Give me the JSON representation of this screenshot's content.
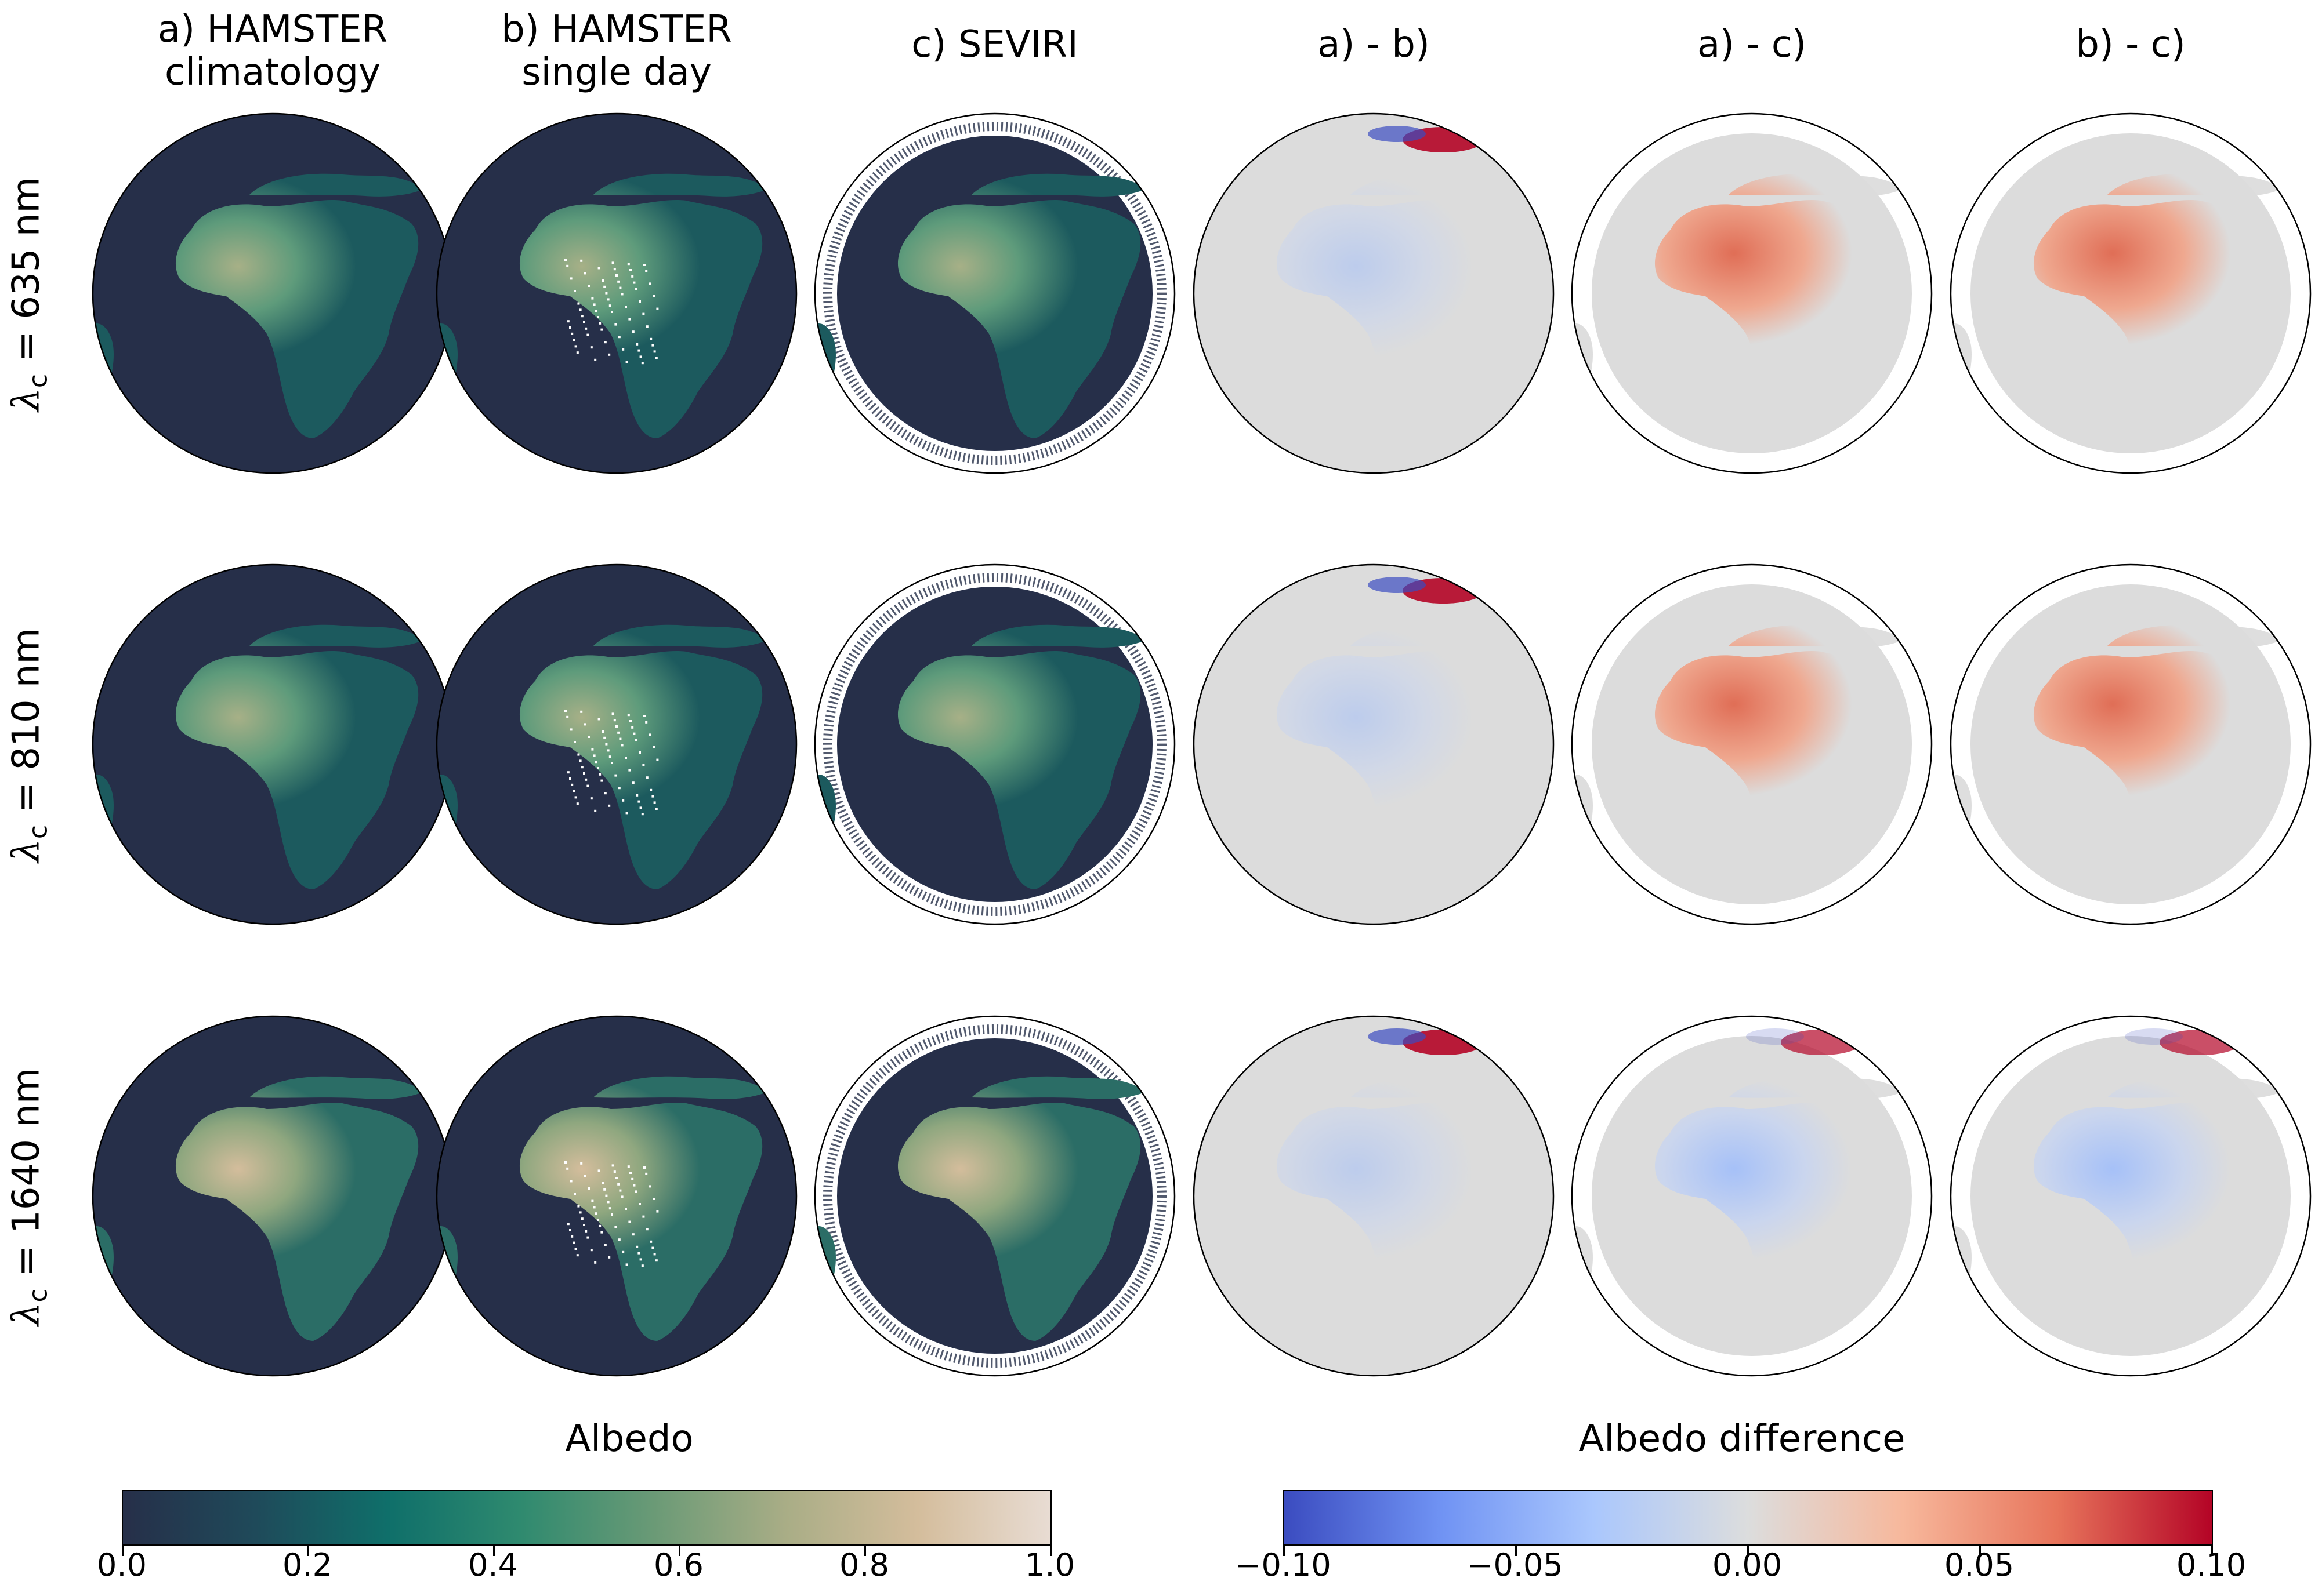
{
  "columns": [
    {
      "title": "a) HAMSTER\nclimatology",
      "type": "albedo",
      "variant": "clim"
    },
    {
      "title": "b) HAMSTER\nsingle day",
      "type": "albedo",
      "variant": "day"
    },
    {
      "title": "c) SEVIRI",
      "type": "albedo",
      "variant": "seviri"
    },
    {
      "title": "a) - b)",
      "type": "diff",
      "variant": "ab"
    },
    {
      "title": "a) - c)",
      "type": "diff",
      "variant": "ac"
    },
    {
      "title": "b) - c)",
      "type": "diff",
      "variant": "bc"
    }
  ],
  "rows": [
    {
      "label_prefix": "λ",
      "label_sub": "c",
      "label_value": " = 635 nm",
      "wavelength_nm": 635
    },
    {
      "label_prefix": "λ",
      "label_sub": "c",
      "label_value": " = 810 nm",
      "wavelength_nm": 810
    },
    {
      "label_prefix": "λ",
      "label_sub": "c",
      "label_value": " = 1640 nm",
      "wavelength_nm": 1640
    }
  ],
  "colorbars": [
    {
      "title": "Albedo",
      "ticks": [
        "0.0",
        "0.2",
        "0.4",
        "0.6",
        "0.8",
        "1.0"
      ],
      "range": [
        0.0,
        1.0
      ],
      "colors": [
        "#262f49",
        "#1f4a5a",
        "#0f6f6a",
        "#2f8a6f",
        "#6a9a76",
        "#a9ad86",
        "#d4bd9c",
        "#e8dcd3"
      ]
    },
    {
      "title": "Albedo difference",
      "ticks": [
        "−0.10",
        "−0.05",
        "0.00",
        "0.05",
        "0.10"
      ],
      "range": [
        -0.1,
        0.1
      ],
      "colors": [
        "#3b4cc0",
        "#6f92f3",
        "#aac7fd",
        "#dcdddd",
        "#f7b89c",
        "#e7745b",
        "#b40426"
      ]
    }
  ],
  "colors": {
    "ocean": "#262f49",
    "land_low": "#1c5a5e",
    "land_mid": "#3e8c72",
    "land_high": "#a7b087",
    "diff_neutral": "#dcdcdc",
    "diff_red": "#e0684f",
    "diff_blue": "#7f9ef5"
  }
}
